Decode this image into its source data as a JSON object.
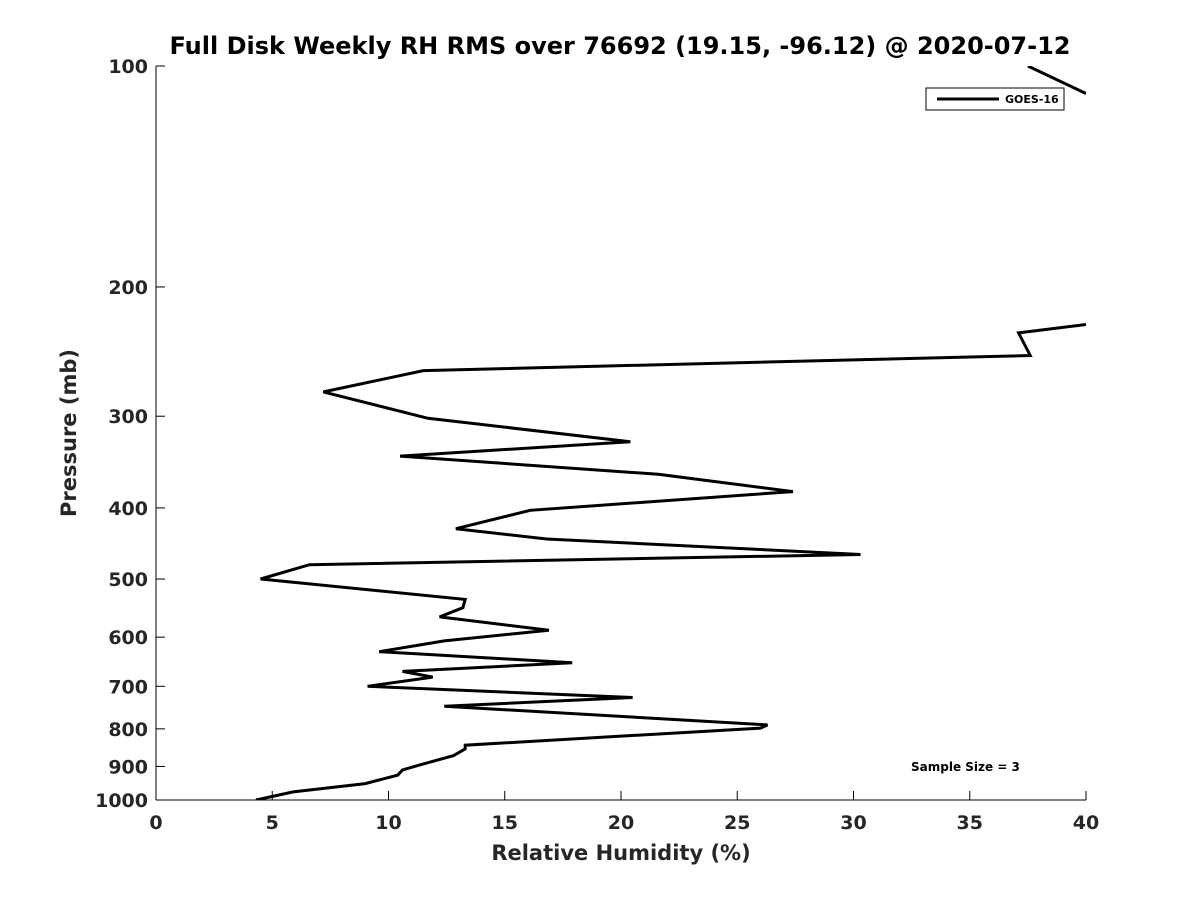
{
  "chart_data": {
    "type": "line",
    "title": "Full Disk Weekly RH RMS over 76692 (19.15, -96.12) @ 2020-07-12",
    "xlabel": "Relative Humidity (%)",
    "ylabel": "Pressure (mb)",
    "xlim": [
      0,
      40
    ],
    "ylim": [
      100,
      1000
    ],
    "yscale": "log",
    "y_reversed": true,
    "grid": false,
    "legend_position": "top-right",
    "x_ticks": [
      0,
      5,
      10,
      15,
      20,
      25,
      30,
      35,
      40
    ],
    "x_tick_labels": [
      "0",
      "5",
      "10",
      "15",
      "20",
      "25",
      "30",
      "35",
      "40"
    ],
    "y_ticks": [
      100,
      200,
      300,
      400,
      500,
      600,
      700,
      800,
      900,
      1000
    ],
    "y_tick_labels": [
      "100",
      "200",
      "300",
      "400",
      "500",
      "600",
      "700",
      "800",
      "900",
      "1000"
    ],
    "series": [
      {
        "name": "GOES-16",
        "color": "#000000",
        "points": [
          [
            4.3,
            1000
          ],
          [
            5.9,
            975
          ],
          [
            9.0,
            950
          ],
          [
            10.4,
            925
          ],
          [
            10.6,
            910
          ],
          [
            11.4,
            895
          ],
          [
            12.8,
            870
          ],
          [
            13.3,
            852
          ],
          [
            13.3,
            842
          ],
          [
            26.0,
            798
          ],
          [
            26.3,
            790
          ],
          [
            12.4,
            745
          ],
          [
            20.5,
            725
          ],
          [
            9.1,
            700
          ],
          [
            11.9,
            680
          ],
          [
            10.6,
            668
          ],
          [
            17.9,
            650
          ],
          [
            9.6,
            628
          ],
          [
            12.4,
            607
          ],
          [
            16.9,
            587
          ],
          [
            12.2,
            563
          ],
          [
            13.2,
            547
          ],
          [
            13.3,
            533
          ],
          [
            4.5,
            500
          ],
          [
            6.6,
            478
          ],
          [
            30.3,
            463
          ],
          [
            16.8,
            441
          ],
          [
            12.9,
            427
          ],
          [
            16.1,
            403
          ],
          [
            27.4,
            380
          ],
          [
            21.6,
            360
          ],
          [
            10.5,
            340
          ],
          [
            20.4,
            325
          ],
          [
            11.7,
            302
          ],
          [
            7.2,
            278
          ],
          [
            11.5,
            260
          ],
          [
            37.6,
            248
          ],
          [
            37.1,
            231
          ],
          [
            40.0,
            225
          ]
        ],
        "segments": [
          [
            [
              37.5,
              100
            ],
            [
              40.0,
              109
            ]
          ]
        ]
      }
    ],
    "legend": [
      "GOES-16"
    ],
    "annotation": "Sample Size = 3"
  }
}
